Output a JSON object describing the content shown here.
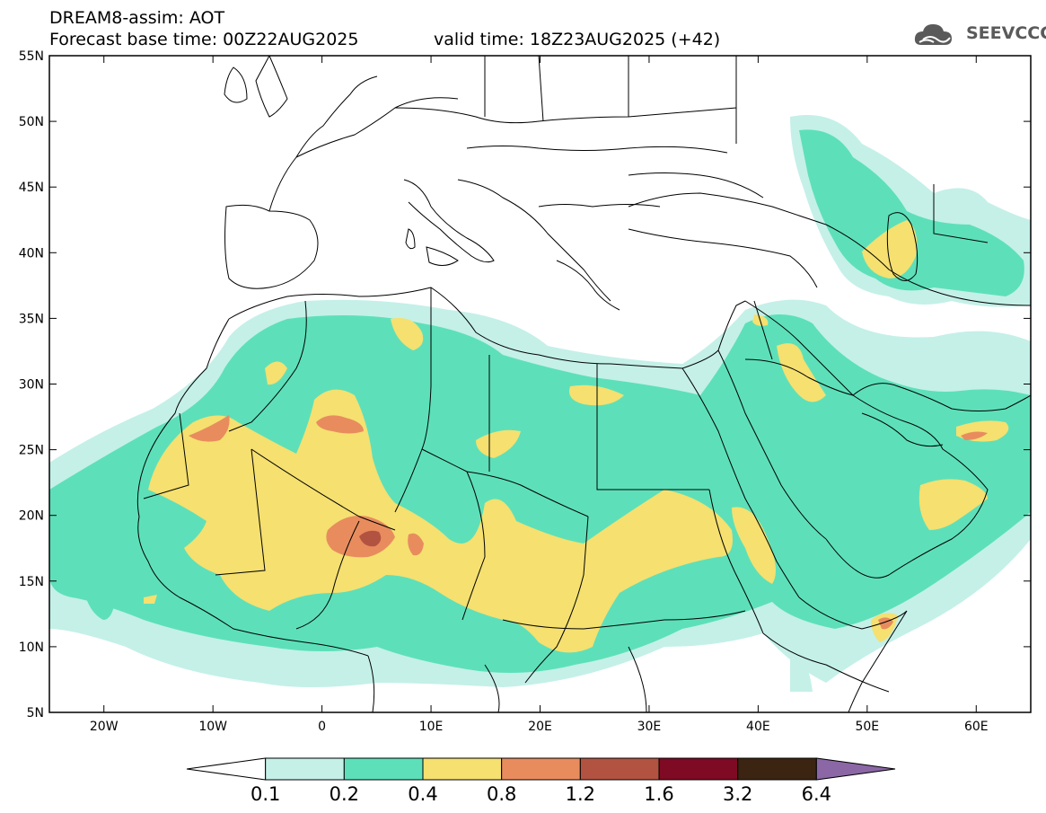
{
  "header": {
    "title": "DREAM8-assim: AOT",
    "base_time": "Forecast base time: 00Z22AUG2025",
    "valid_time": "valid time: 18Z23AUG2025 (+42)"
  },
  "logo": {
    "text": "SEEVCCC",
    "icon": "cloud-logo-icon",
    "color": "#5a5a5a"
  },
  "map": {
    "projection": "lat-lon",
    "lon_range": [
      -25,
      65
    ],
    "lat_range": [
      5,
      55
    ],
    "lat_ticks": [
      {
        "value": 55,
        "label": "55N"
      },
      {
        "value": 50,
        "label": "50N"
      },
      {
        "value": 45,
        "label": "45N"
      },
      {
        "value": 40,
        "label": "40N"
      },
      {
        "value": 35,
        "label": "35N"
      },
      {
        "value": 30,
        "label": "30N"
      },
      {
        "value": 25,
        "label": "25N"
      },
      {
        "value": 20,
        "label": "20N"
      },
      {
        "value": 15,
        "label": "15N"
      },
      {
        "value": 10,
        "label": "10N"
      },
      {
        "value": 5,
        "label": "5N"
      }
    ],
    "lon_ticks": [
      {
        "value": -20,
        "label": "20W"
      },
      {
        "value": -10,
        "label": "10W"
      },
      {
        "value": 0,
        "label": "0"
      },
      {
        "value": 10,
        "label": "10E"
      },
      {
        "value": 20,
        "label": "20E"
      },
      {
        "value": 30,
        "label": "30E"
      },
      {
        "value": 40,
        "label": "40E"
      },
      {
        "value": 50,
        "label": "50E"
      },
      {
        "value": 60,
        "label": "60E"
      }
    ]
  },
  "colorbar": {
    "below_color": "#ffffff",
    "above_color": "#8b67a6",
    "bins": [
      {
        "color": "#c4f0e8",
        "label": "0.1"
      },
      {
        "color": "#5de0b9",
        "label": "0.2"
      },
      {
        "color": "#f5e070",
        "label": "0.4"
      },
      {
        "color": "#e88c5e",
        "label": "0.8"
      },
      {
        "color": "#b25342",
        "label": "1.2"
      },
      {
        "color": "#7e0a23",
        "label": "1.6"
      },
      {
        "color": "#3b2412",
        "label": "3.2"
      },
      {
        "color": "",
        "label": "6.4"
      }
    ]
  }
}
